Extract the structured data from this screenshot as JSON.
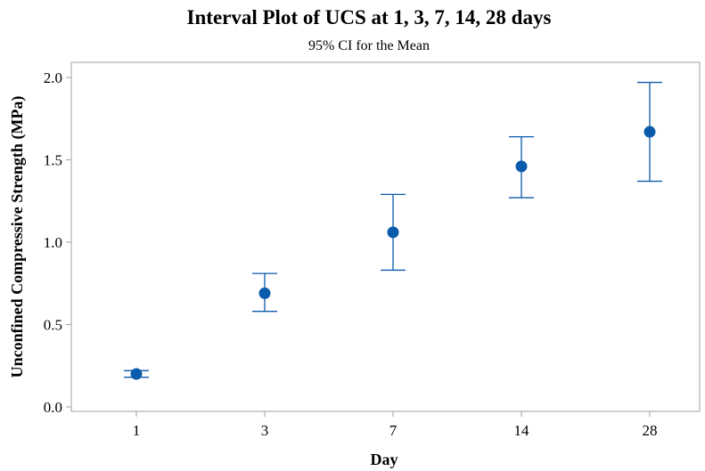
{
  "chart_data": {
    "type": "scatter",
    "title": "Interval Plot of UCS at 1, 3, 7, 14, 28 days",
    "subtitle": "95% CI for the Mean",
    "xlabel": "Day",
    "ylabel": "Unconfined Compressive Strength (MPa)",
    "categories": [
      "1",
      "3",
      "7",
      "14",
      "28"
    ],
    "means": [
      0.2,
      0.69,
      1.06,
      1.46,
      1.67
    ],
    "ci_lower": [
      0.18,
      0.58,
      0.83,
      1.27,
      1.37
    ],
    "ci_upper": [
      0.22,
      0.81,
      1.29,
      1.64,
      1.97
    ],
    "ylim": [
      0.0,
      2.0
    ],
    "yticks": [
      "0.0",
      "0.5",
      "1.0",
      "1.5",
      "2.0"
    ],
    "grid": false,
    "colors": {
      "series": "#0a5bab",
      "frame": "#a0a0a0",
      "axis_text": "#000000"
    }
  }
}
